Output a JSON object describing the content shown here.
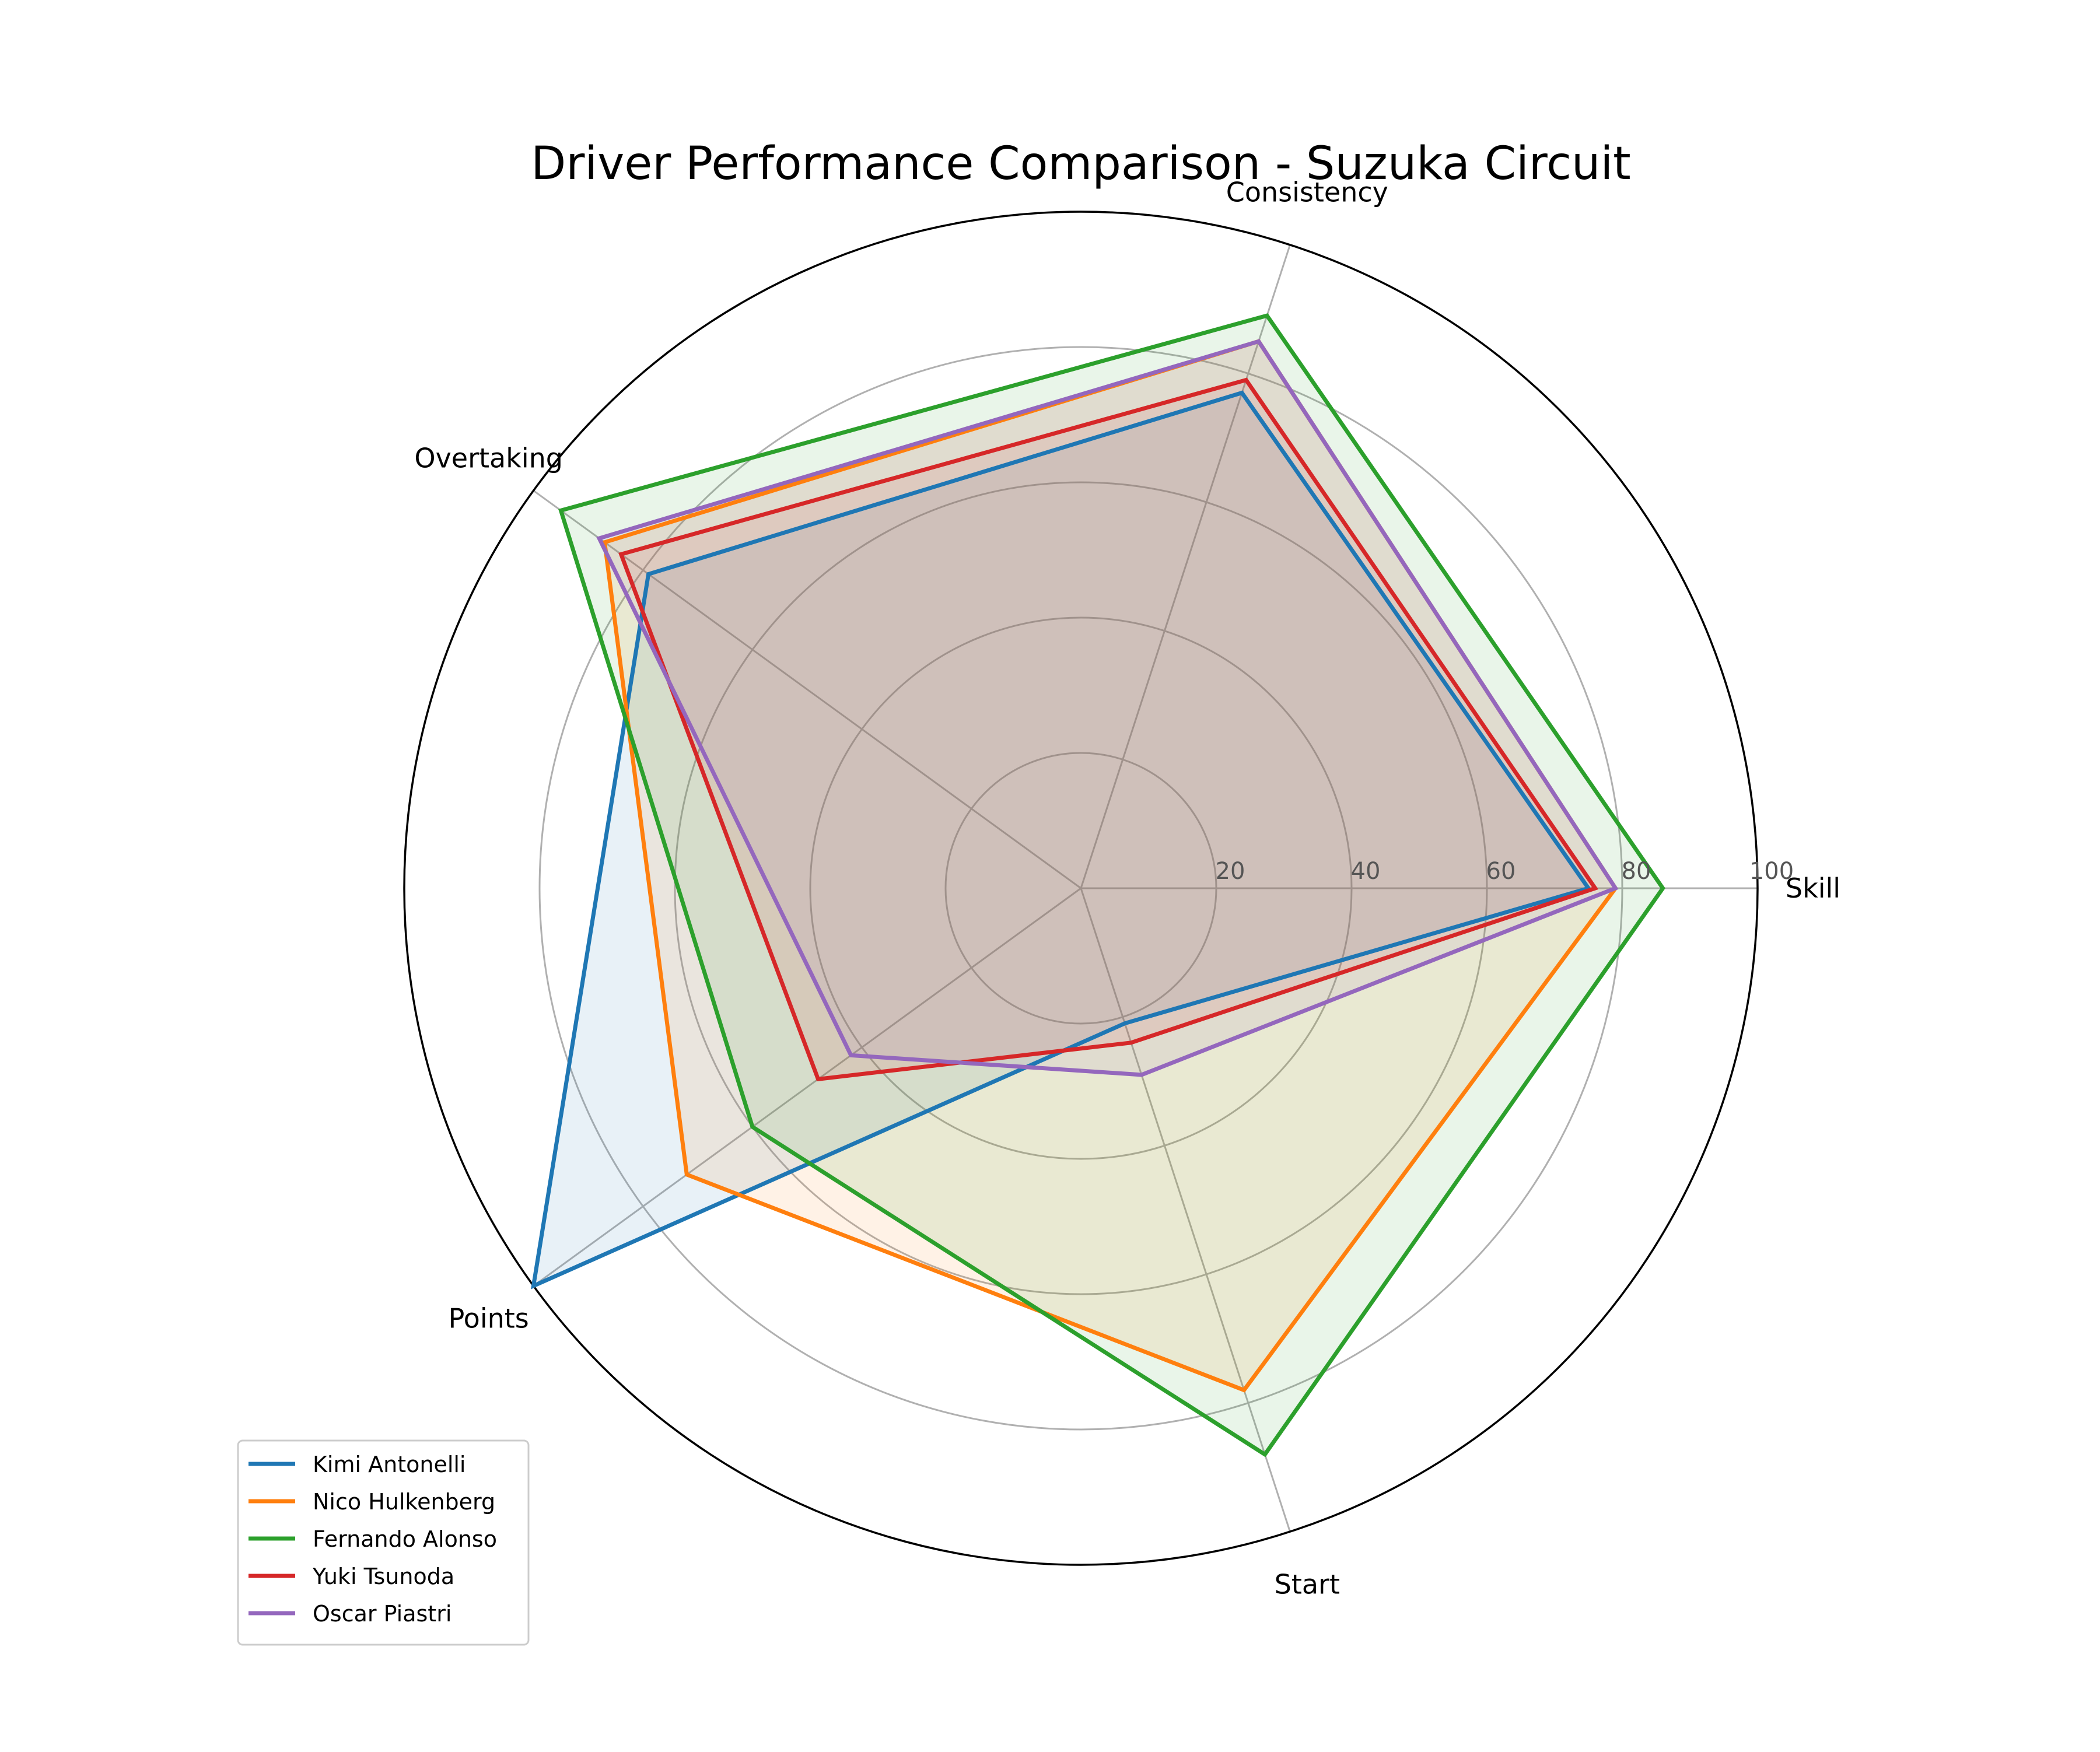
{
  "chart_data": {
    "type": "radar",
    "title": "Driver Performance Comparison - Suzuka Circuit",
    "axes": [
      "Skill",
      "Consistency",
      "Overtaking",
      "Points",
      "Start"
    ],
    "rlim": [
      0,
      100
    ],
    "radial_ticks": [
      20,
      40,
      60,
      80,
      100
    ],
    "grid": true,
    "legend_position": "bottom-left",
    "series": [
      {
        "name": "Kimi Antonelli",
        "color": "#1f77b4",
        "values": [
          75,
          77,
          79,
          100,
          21
        ]
      },
      {
        "name": "Nico Hulkenberg",
        "color": "#ff7f0e",
        "values": [
          79,
          85,
          87,
          72,
          78
        ]
      },
      {
        "name": "Fernando Alonso",
        "color": "#2ca02c",
        "values": [
          86,
          89,
          95,
          60,
          88
        ]
      },
      {
        "name": "Yuki Tsunoda",
        "color": "#d62728",
        "values": [
          76,
          79,
          84,
          48,
          24
        ]
      },
      {
        "name": "Oscar Piastri",
        "color": "#9467bd",
        "values": [
          79,
          85,
          88,
          42,
          29
        ]
      }
    ]
  }
}
